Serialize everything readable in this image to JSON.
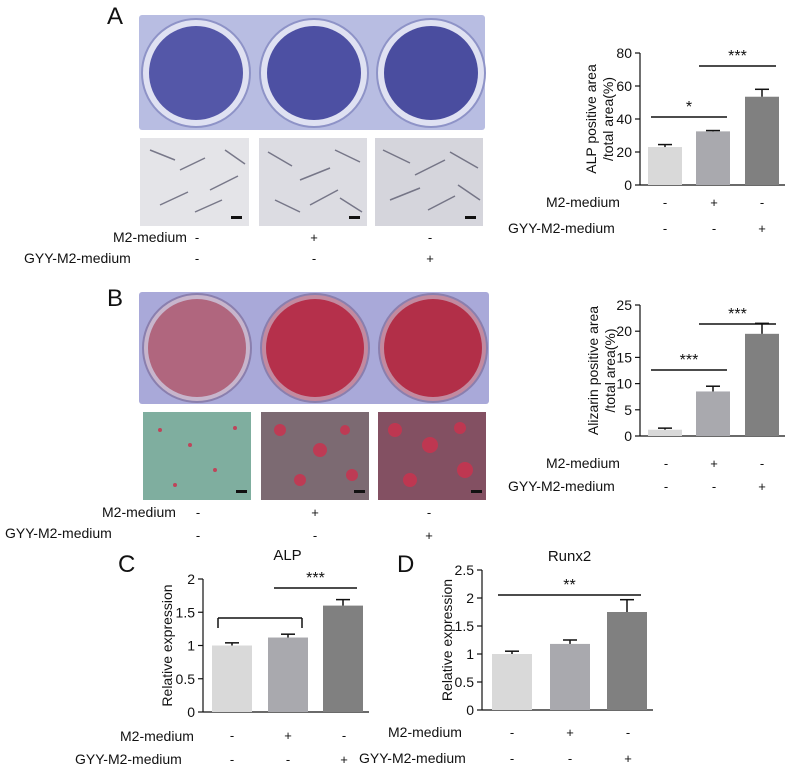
{
  "panel_letters": [
    "A",
    "B",
    "C",
    "D"
  ],
  "treatment_rows": {
    "m2_label": "M2-medium",
    "gyy_label": "GYY-M2-medium",
    "m2_signs": [
      "-",
      "+",
      "-"
    ],
    "gyy_signs": [
      "-",
      "-",
      "+"
    ]
  },
  "colors": {
    "bar1": "#d9d9d9",
    "bar2": "#a9a9ae",
    "bar3": "#808080",
    "alp_well": "#6a6bb6",
    "alp_plate": "#b8bde2",
    "ars_well": "#b5304b",
    "ars_plate": "#a9a9d9",
    "micro_alp_bg": "#eeeeef",
    "micro_ars_bg": "#7fae9f"
  },
  "chart_data": [
    {
      "id": "A",
      "type": "bar",
      "categories": [
        "",
        "",
        ""
      ],
      "values": [
        23,
        32.5,
        53.5
      ],
      "errors": [
        1.5,
        0.5,
        4.5
      ],
      "ylabel": "ALP positive area /total area(%)",
      "ylabel_lines": [
        "ALP positive area",
        "/total area(%)"
      ],
      "ylim": [
        0,
        80
      ],
      "yticks": [
        "0",
        "20",
        "40",
        "60",
        "80"
      ],
      "significance": [
        {
          "from": 0,
          "to": 1,
          "label": "*"
        },
        {
          "from": 1,
          "to": 2,
          "label": "***"
        }
      ]
    },
    {
      "id": "B",
      "type": "bar",
      "categories": [
        "",
        "",
        ""
      ],
      "values": [
        1.2,
        8.5,
        19.5
      ],
      "errors": [
        0.3,
        1.0,
        2.0
      ],
      "ylabel": "Alizarin positive area /total area(%)",
      "ylabel_lines": [
        "Alizarin positive area",
        "/total area(%)"
      ],
      "ylim": [
        0,
        25
      ],
      "yticks": [
        "0",
        "5",
        "10",
        "15",
        "20",
        "25"
      ],
      "significance": [
        {
          "from": 0,
          "to": 1,
          "label": "***"
        },
        {
          "from": 1,
          "to": 2,
          "label": "***"
        }
      ]
    },
    {
      "id": "C",
      "type": "bar",
      "title": "ALP",
      "categories": [
        "",
        "",
        ""
      ],
      "values": [
        1.0,
        1.12,
        1.6
      ],
      "errors": [
        0.04,
        0.05,
        0.09
      ],
      "ylabel": "Relative expression",
      "ylim": [
        0,
        2
      ],
      "yticks": [
        "0",
        "0.5",
        "1",
        "1.5",
        "2"
      ],
      "significance": [
        {
          "from": 0,
          "to": 1,
          "label": ""
        },
        {
          "from": 1,
          "to": 2,
          "label": "***"
        }
      ]
    },
    {
      "id": "D",
      "type": "bar",
      "title": "Runx2",
      "categories": [
        "",
        "",
        ""
      ],
      "values": [
        1.0,
        1.18,
        1.75
      ],
      "errors": [
        0.05,
        0.07,
        0.22
      ],
      "ylabel": "Relative expression",
      "ylim": [
        0,
        2.5
      ],
      "yticks": [
        "0",
        "0.5",
        "1",
        "1.5",
        "2",
        "2.5"
      ],
      "significance": [
        {
          "from": 0,
          "to": 2,
          "label": "**"
        }
      ]
    }
  ]
}
